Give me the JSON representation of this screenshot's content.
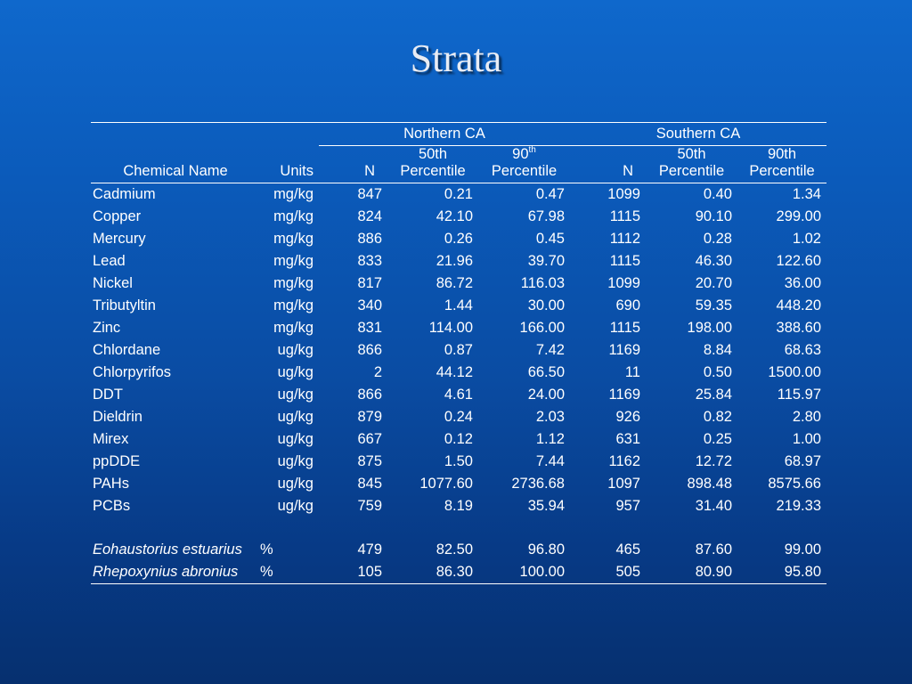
{
  "slide": {
    "title": "Strata"
  },
  "table": {
    "groups": {
      "north": "Northern CA",
      "south": "Southern CA"
    },
    "headers": {
      "chemical_name": "Chemical Name",
      "units": "Units",
      "n_north": "N",
      "p50_north_top": "50th",
      "p50_north_bottom": "Percentile",
      "p90_north_top": "90",
      "p90_north_sup": "th",
      "p90_north_bottom": "Percentile",
      "n_south": "N",
      "p50_south_top": "50th",
      "p50_south_bottom": "Percentile",
      "p90_south_top": "90th",
      "p90_south_bottom": "Percentile"
    },
    "rows": [
      {
        "name": "Cadmium",
        "units": "mg/kg",
        "n_n": "847",
        "n_p50": "0.21",
        "n_p90": "0.47",
        "s_n": "1099",
        "s_p50": "0.40",
        "s_p90": "1.34"
      },
      {
        "name": "Copper",
        "units": "mg/kg",
        "n_n": "824",
        "n_p50": "42.10",
        "n_p90": "67.98",
        "s_n": "1115",
        "s_p50": "90.10",
        "s_p90": "299.00"
      },
      {
        "name": "Mercury",
        "units": "mg/kg",
        "n_n": "886",
        "n_p50": "0.26",
        "n_p90": "0.45",
        "s_n": "1112",
        "s_p50": "0.28",
        "s_p90": "1.02"
      },
      {
        "name": "Lead",
        "units": "mg/kg",
        "n_n": "833",
        "n_p50": "21.96",
        "n_p90": "39.70",
        "s_n": "1115",
        "s_p50": "46.30",
        "s_p90": "122.60"
      },
      {
        "name": "Nickel",
        "units": "mg/kg",
        "n_n": "817",
        "n_p50": "86.72",
        "n_p90": "116.03",
        "s_n": "1099",
        "s_p50": "20.70",
        "s_p90": "36.00"
      },
      {
        "name": "Tributyltin",
        "units": "mg/kg",
        "n_n": "340",
        "n_p50": "1.44",
        "n_p90": "30.00",
        "s_n": "690",
        "s_p50": "59.35",
        "s_p90": "448.20"
      },
      {
        "name": "Zinc",
        "units": "mg/kg",
        "n_n": "831",
        "n_p50": "114.00",
        "n_p90": "166.00",
        "s_n": "1115",
        "s_p50": "198.00",
        "s_p90": "388.60"
      },
      {
        "name": "Chlordane",
        "units": "ug/kg",
        "n_n": "866",
        "n_p50": "0.87",
        "n_p90": "7.42",
        "s_n": "1169",
        "s_p50": "8.84",
        "s_p90": "68.63"
      },
      {
        "name": "Chlorpyrifos",
        "units": "ug/kg",
        "n_n": "2",
        "n_p50": "44.12",
        "n_p90": "66.50",
        "s_n": "11",
        "s_p50": "0.50",
        "s_p90": "1500.00"
      },
      {
        "name": "DDT",
        "units": "ug/kg",
        "n_n": "866",
        "n_p50": "4.61",
        "n_p90": "24.00",
        "s_n": "1169",
        "s_p50": "25.84",
        "s_p90": "115.97"
      },
      {
        "name": "Dieldrin",
        "units": "ug/kg",
        "n_n": "879",
        "n_p50": "0.24",
        "n_p90": "2.03",
        "s_n": "926",
        "s_p50": "0.82",
        "s_p90": "2.80"
      },
      {
        "name": "Mirex",
        "units": "ug/kg",
        "n_n": "667",
        "n_p50": "0.12",
        "n_p90": "1.12",
        "s_n": "631",
        "s_p50": "0.25",
        "s_p90": "1.00"
      },
      {
        "name": "ppDDE",
        "units": "ug/kg",
        "n_n": "875",
        "n_p50": "1.50",
        "n_p90": "7.44",
        "s_n": "1162",
        "s_p50": "12.72",
        "s_p90": "68.97"
      },
      {
        "name": "PAHs",
        "units": "ug/kg",
        "n_n": "845",
        "n_p50": "1077.60",
        "n_p90": "2736.68",
        "s_n": "1097",
        "s_p50": "898.48",
        "s_p90": "8575.66"
      },
      {
        "name": "PCBs",
        "units": "ug/kg",
        "n_n": "759",
        "n_p50": "8.19",
        "n_p90": "35.94",
        "s_n": "957",
        "s_p50": "31.40",
        "s_p90": "219.33"
      }
    ],
    "toxicity_rows": [
      {
        "name": "Eohaustorius estuarius",
        "units": "%",
        "n_n": "479",
        "n_p50": "82.50",
        "n_p90": "96.80",
        "s_n": "465",
        "s_p50": "87.60",
        "s_p90": "99.00"
      },
      {
        "name": "Rhepoxynius abronius",
        "units": "%",
        "n_n": "105",
        "n_p50": "86.30",
        "n_p90": "100.00",
        "s_n": "505",
        "s_p50": "80.90",
        "s_p90": "95.80"
      }
    ]
  }
}
